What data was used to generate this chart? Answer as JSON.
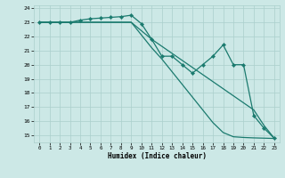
{
  "xlabel": "Humidex (Indice chaleur)",
  "bg_color": "#cce8e6",
  "grid_color": "#aacfcc",
  "line_color": "#1a7a6e",
  "xlim": [
    -0.5,
    23.5
  ],
  "ylim": [
    14.5,
    24.2
  ],
  "yticks": [
    15,
    16,
    17,
    18,
    19,
    20,
    21,
    22,
    23,
    24
  ],
  "xticks": [
    0,
    1,
    2,
    3,
    4,
    5,
    6,
    7,
    8,
    9,
    10,
    11,
    12,
    13,
    14,
    15,
    16,
    17,
    18,
    19,
    20,
    21,
    22,
    23
  ],
  "line1_x": [
    0,
    1,
    2,
    3,
    4,
    5,
    6,
    7,
    8,
    9,
    10,
    11,
    12,
    13,
    14,
    15,
    16,
    17,
    18,
    19,
    20,
    21,
    22,
    23
  ],
  "line1_y": [
    23.0,
    23.0,
    23.0,
    23.0,
    23.15,
    23.25,
    23.3,
    23.35,
    23.4,
    23.5,
    22.9,
    21.8,
    20.6,
    20.6,
    20.0,
    19.4,
    20.0,
    20.6,
    21.4,
    20.0,
    20.0,
    16.4,
    15.5,
    14.8
  ],
  "line2_x": [
    0,
    1,
    2,
    3,
    4,
    5,
    6,
    7,
    8,
    9,
    10,
    11,
    12,
    13,
    14,
    15,
    16,
    17,
    18,
    19,
    20,
    21,
    22,
    23
  ],
  "line2_y": [
    23.0,
    23.0,
    23.0,
    23.0,
    23.0,
    23.0,
    23.0,
    23.0,
    23.0,
    23.0,
    22.4,
    21.8,
    21.3,
    20.8,
    20.3,
    19.8,
    19.3,
    18.8,
    18.3,
    17.8,
    17.3,
    16.8,
    15.7,
    14.8
  ],
  "line3_x": [
    0,
    1,
    2,
    3,
    4,
    5,
    6,
    7,
    8,
    9,
    10,
    11,
    12,
    13,
    14,
    15,
    16,
    17,
    18,
    19,
    20,
    21,
    22,
    23
  ],
  "line3_y": [
    23.0,
    23.0,
    23.0,
    23.0,
    23.0,
    23.0,
    23.0,
    23.0,
    23.0,
    23.0,
    22.1,
    21.2,
    20.4,
    19.5,
    18.6,
    17.7,
    16.8,
    15.9,
    15.2,
    14.9,
    14.85,
    14.82,
    14.8,
    14.78
  ]
}
